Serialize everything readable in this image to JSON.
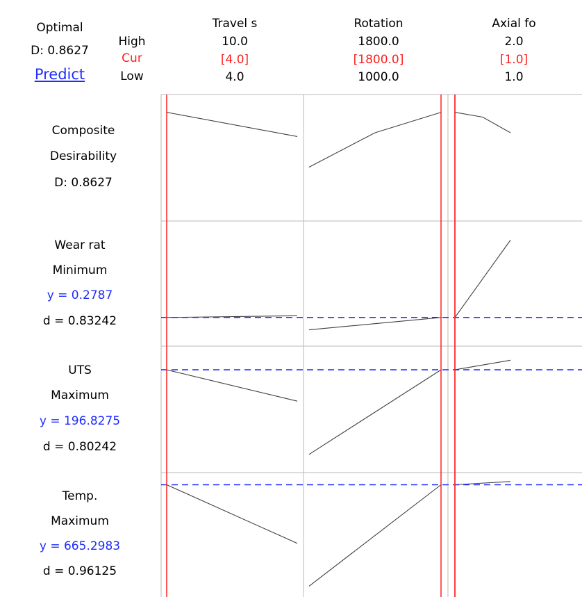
{
  "summary": {
    "optimal_label": "Optimal",
    "d_label": "D: 0.8627",
    "predict_label": "Predict"
  },
  "level_labels": {
    "high": "High",
    "cur": "Cur",
    "low": "Low"
  },
  "colors": {
    "current_line": "#ff2020",
    "target_line": "#1f2dff",
    "curve": "#404040",
    "grid": "#b8b8b8"
  },
  "factors": [
    {
      "name": "Travel s",
      "high": "10.0",
      "cur": "[4.0]",
      "low": "4.0",
      "high_val": 10.0,
      "cur_val": 4.0,
      "low_val": 4.0
    },
    {
      "name": "Rotation",
      "high": "1800.0",
      "cur": "[1800.0]",
      "low": "1000.0",
      "high_val": 1800.0,
      "cur_val": 1800.0,
      "low_val": 1000.0
    },
    {
      "name": "Axial fo",
      "high": "2.0",
      "cur": "[1.0]",
      "low": "1.0",
      "high_val": 2.0,
      "cur_val": 1.0,
      "low_val": 1.0
    }
  ],
  "responses": [
    {
      "name": "Composite",
      "goal": "Desirability",
      "y": "D: 0.8627",
      "d": ""
    },
    {
      "name": "Wear rat",
      "goal": "Minimum",
      "y": "y = 0.2787",
      "d": "d = 0.83242"
    },
    {
      "name": "UTS",
      "goal": "Maximum",
      "y": "y = 196.8275",
      "d": "d = 0.80242"
    },
    {
      "name": "Temp.",
      "goal": "Maximum",
      "y": "y = 665.2983",
      "d": "d = 0.96125"
    }
  ],
  "chart_data": {
    "type": "line",
    "title": "",
    "factors": [
      "Travel s",
      "Rotation",
      "Axial fo"
    ],
    "rows": [
      {
        "response": "Composite Desirability",
        "target": null,
        "ylim": [
          0.7,
          0.88
        ],
        "curves": [
          {
            "x": [
              4,
              10
            ],
            "y": [
              0.8627,
              0.824
            ]
          },
          {
            "x": [
              1000,
              1400,
              1800
            ],
            "y": [
              0.775,
              0.83,
              0.8627
            ]
          },
          {
            "x": [
              1.0,
              1.2,
              1.4
            ],
            "y": [
              0.8627,
              0.855,
              0.83
            ]
          }
        ]
      },
      {
        "response": "Wear rat",
        "target": 0.2787,
        "ylim": [
          0.225,
          0.5
        ],
        "curves": [
          {
            "x": [
              4,
              10
            ],
            "y": [
              0.2787,
              0.283
            ]
          },
          {
            "x": [
              1000,
              1800
            ],
            "y": [
              0.248,
              0.2787
            ]
          },
          {
            "x": [
              1.0,
              1.4
            ],
            "y": [
              0.2787,
              0.47
            ]
          }
        ]
      },
      {
        "response": "UTS",
        "target": 196.8275,
        "ylim": [
          150,
          205
        ],
        "curves": [
          {
            "x": [
              4,
              10
            ],
            "y": [
              196.8275,
              181.5
            ]
          },
          {
            "x": [
              1000,
              1800
            ],
            "y": [
              155.5,
              196.8275
            ]
          },
          {
            "x": [
              1.0,
              1.4
            ],
            "y": [
              196.8275,
              201.5
            ]
          }
        ]
      },
      {
        "response": "Temp.",
        "target": 665.2983,
        "ylim": [
          530,
          672
        ],
        "curves": [
          {
            "x": [
              4,
              10
            ],
            "y": [
              665.2983,
              590
            ]
          },
          {
            "x": [
              1000,
              1800
            ],
            "y": [
              535,
              665.2983
            ]
          },
          {
            "x": [
              1.0,
              1.4
            ],
            "y": [
              665.2983,
              669.5
            ]
          }
        ]
      }
    ]
  }
}
